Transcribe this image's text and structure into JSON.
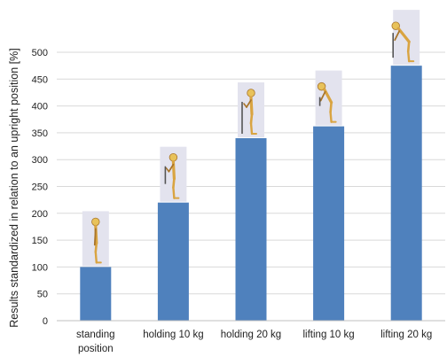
{
  "chart_data": {
    "type": "bar",
    "title": "",
    "xlabel": "",
    "ylabel": "Results standardized in relation to an upright position [%]",
    "ylim": [
      0,
      500
    ],
    "yticks": [
      0,
      50,
      100,
      150,
      200,
      250,
      300,
      350,
      400,
      450,
      500
    ],
    "grid": true,
    "legend": "none",
    "bar_color": "#4f81bd",
    "categories": [
      {
        "line1": "standing",
        "line2": "position"
      },
      {
        "line1": "holding 10 kg",
        "line2": ""
      },
      {
        "line1": "holding 20 kg",
        "line2": ""
      },
      {
        "line1": "lifting 10 kg",
        "line2": ""
      },
      {
        "line1": "lifting 20 kg",
        "line2": ""
      }
    ],
    "values": [
      100,
      220,
      340,
      362,
      475
    ],
    "bar_icons": [
      "upright-posture-figure-icon",
      "holding-load-figure-icon",
      "holding-heavy-load-figure-icon",
      "bent-lifting-figure-icon",
      "deep-bent-lifting-figure-icon"
    ]
  }
}
